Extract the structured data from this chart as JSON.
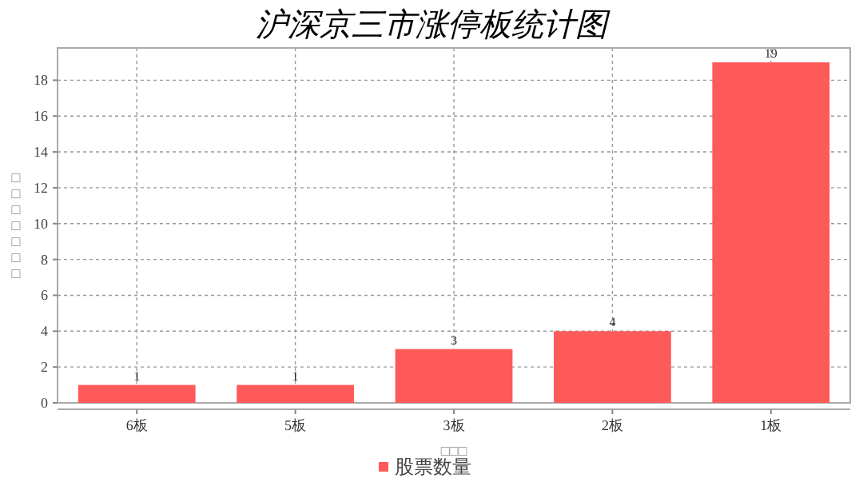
{
  "chart_data": {
    "type": "bar",
    "title": "沪深京三市涨停板统计图",
    "xlabel": "□□□",
    "ylabel": "□□□□□□□",
    "categories": [
      "6板",
      "5板",
      "3板",
      "2板",
      "1板"
    ],
    "series": [
      {
        "name": "股票数量",
        "color": "#ff5a5a",
        "values": [
          1,
          1,
          3,
          4,
          19
        ]
      }
    ],
    "ylim": [
      0,
      19.8
    ],
    "yticks": [
      0,
      2,
      4,
      6,
      8,
      10,
      12,
      14,
      16,
      18
    ],
    "grid": true,
    "legend": "bottom",
    "data_labels": true
  }
}
